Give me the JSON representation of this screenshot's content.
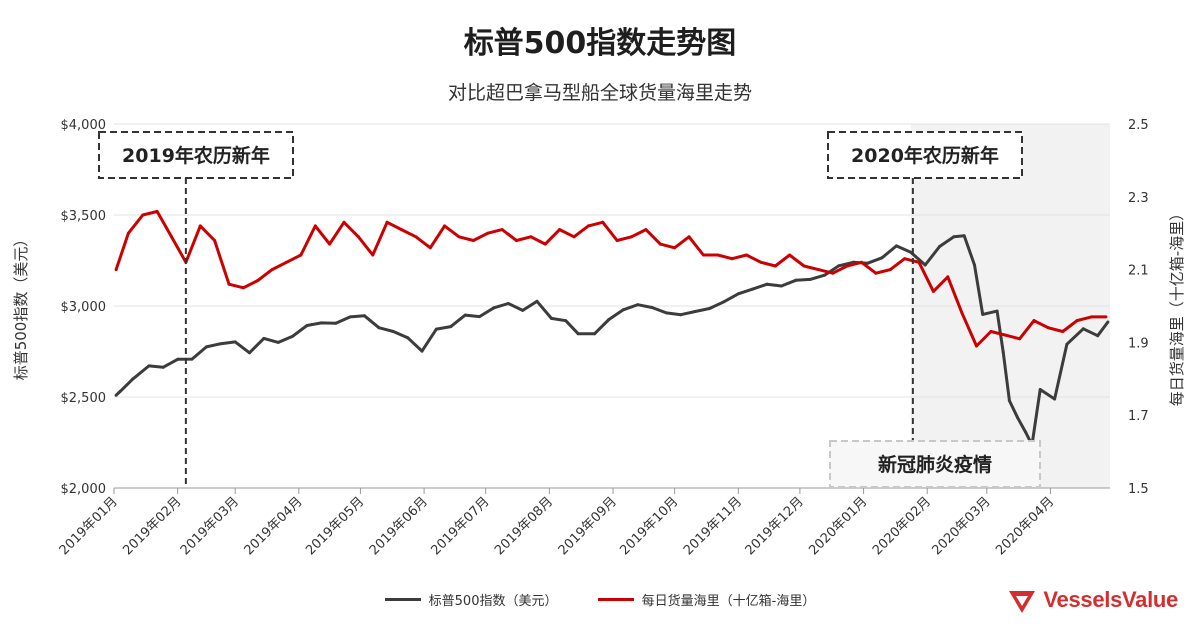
{
  "chart_data": {
    "type": "line",
    "title": "标普500指数走势图",
    "subtitle": "对比超巴拿马型船全球货量海里走势",
    "x_ticks": [
      "2019年01月",
      "2019年02月",
      "2019年03月",
      "2019年04月",
      "2019年05月",
      "2019年06月",
      "2019年07月",
      "2019年08月",
      "2019年09月",
      "2019年10月",
      "2019年11月",
      "2019年12月",
      "2020年01月",
      "2020年02月",
      "2020年03月",
      "2020年04月"
    ],
    "ylabel_left": "标普500指数（美元）",
    "ylabel_right": "每日货量海里（十亿箱-海里）",
    "ylim_left": [
      2000,
      4000
    ],
    "ylim_right": [
      1.5,
      2.5
    ],
    "yticks_left": [
      "$2,000",
      "$2,500",
      "$3,000",
      "$3,500",
      "$4,000"
    ],
    "yticks_right": [
      "1.5",
      "1.7",
      "1.9",
      "2.1",
      "2.3",
      "2.5"
    ],
    "grid": true,
    "legend_position": "bottom",
    "series": [
      {
        "name": "标普500指数（美元）",
        "axis": "left",
        "color": "#3c3c3c",
        "x": [
          "2019-01-02",
          "2019-01-04",
          "2019-01-10",
          "2019-01-18",
          "2019-01-25",
          "2019-02-01",
          "2019-02-08",
          "2019-02-15",
          "2019-02-22",
          "2019-03-01",
          "2019-03-08",
          "2019-03-15",
          "2019-03-22",
          "2019-03-29",
          "2019-04-05",
          "2019-04-12",
          "2019-04-19",
          "2019-04-26",
          "2019-05-03",
          "2019-05-10",
          "2019-05-17",
          "2019-05-24",
          "2019-05-31",
          "2019-06-07",
          "2019-06-14",
          "2019-06-21",
          "2019-06-28",
          "2019-07-05",
          "2019-07-12",
          "2019-07-19",
          "2019-07-26",
          "2019-08-02",
          "2019-08-09",
          "2019-08-15",
          "2019-08-23",
          "2019-08-30",
          "2019-09-06",
          "2019-09-13",
          "2019-09-20",
          "2019-09-27",
          "2019-10-04",
          "2019-10-11",
          "2019-10-18",
          "2019-10-25",
          "2019-11-01",
          "2019-11-08",
          "2019-11-15",
          "2019-11-22",
          "2019-11-29",
          "2019-12-06",
          "2019-12-13",
          "2019-12-20",
          "2019-12-27",
          "2020-01-03",
          "2020-01-10",
          "2020-01-17",
          "2020-01-24",
          "2020-01-31",
          "2020-02-07",
          "2020-02-14",
          "2020-02-19",
          "2020-02-24",
          "2020-02-28",
          "2020-03-06",
          "2020-03-09",
          "2020-03-12",
          "2020-03-16",
          "2020-03-20",
          "2020-03-23",
          "2020-03-27",
          "2020-04-03",
          "2020-04-09",
          "2020-04-17",
          "2020-04-24",
          "2020-04-29"
        ],
        "values": [
          2510,
          2531,
          2597,
          2671,
          2664,
          2707,
          2708,
          2775,
          2793,
          2803,
          2743,
          2822,
          2800,
          2834,
          2893,
          2907,
          2905,
          2940,
          2946,
          2881,
          2860,
          2826,
          2752,
          2873,
          2887,
          2950,
          2942,
          2990,
          3014,
          2976,
          3026,
          2932,
          2919,
          2848,
          2847,
          2926,
          2979,
          3007,
          2992,
          2962,
          2952,
          2970,
          2986,
          3023,
          3067,
          3093,
          3120,
          3110,
          3141,
          3146,
          3169,
          3221,
          3240,
          3235,
          3265,
          3330,
          3295,
          3225,
          3327,
          3380,
          3386,
          3225,
          2954,
          2972,
          2747,
          2480,
          2386,
          2305,
          2237,
          2541,
          2489,
          2790,
          2875,
          2837,
          2912
        ]
      },
      {
        "name": "每日货量海里（十亿箱-海里）",
        "axis": "right",
        "color": "#cc0000",
        "x": [
          "2019-01-02",
          "2019-01-08",
          "2019-01-15",
          "2019-01-22",
          "2019-01-29",
          "2019-02-05",
          "2019-02-12",
          "2019-02-19",
          "2019-02-26",
          "2019-03-05",
          "2019-03-12",
          "2019-03-19",
          "2019-03-26",
          "2019-04-02",
          "2019-04-09",
          "2019-04-16",
          "2019-04-23",
          "2019-04-30",
          "2019-05-07",
          "2019-05-14",
          "2019-05-21",
          "2019-05-28",
          "2019-06-04",
          "2019-06-11",
          "2019-06-18",
          "2019-06-25",
          "2019-07-02",
          "2019-07-09",
          "2019-07-16",
          "2019-07-23",
          "2019-07-30",
          "2019-08-06",
          "2019-08-13",
          "2019-08-20",
          "2019-08-27",
          "2019-09-03",
          "2019-09-10",
          "2019-09-17",
          "2019-09-24",
          "2019-10-01",
          "2019-10-08",
          "2019-10-15",
          "2019-10-22",
          "2019-10-29",
          "2019-11-05",
          "2019-11-12",
          "2019-11-19",
          "2019-11-26",
          "2019-12-03",
          "2019-12-10",
          "2019-12-17",
          "2019-12-24",
          "2019-12-31",
          "2020-01-07",
          "2020-01-14",
          "2020-01-21",
          "2020-01-28",
          "2020-02-04",
          "2020-02-11",
          "2020-02-18",
          "2020-02-25",
          "2020-03-03",
          "2020-03-10",
          "2020-03-17",
          "2020-03-24",
          "2020-03-31",
          "2020-04-07",
          "2020-04-14",
          "2020-04-21",
          "2020-04-28"
        ],
        "values": [
          2.1,
          2.2,
          2.25,
          2.26,
          2.19,
          2.12,
          2.22,
          2.18,
          2.06,
          2.05,
          2.07,
          2.1,
          2.12,
          2.14,
          2.22,
          2.17,
          2.23,
          2.19,
          2.14,
          2.23,
          2.21,
          2.19,
          2.16,
          2.22,
          2.19,
          2.18,
          2.2,
          2.21,
          2.18,
          2.19,
          2.17,
          2.21,
          2.19,
          2.22,
          2.23,
          2.18,
          2.19,
          2.21,
          2.17,
          2.16,
          2.19,
          2.14,
          2.14,
          2.13,
          2.14,
          2.12,
          2.11,
          2.14,
          2.11,
          2.1,
          2.09,
          2.11,
          2.12,
          2.09,
          2.1,
          2.13,
          2.12,
          2.04,
          2.08,
          1.98,
          1.89,
          1.93,
          1.92,
          1.91,
          1.96,
          1.94,
          1.93,
          1.96,
          1.97,
          1.97
        ]
      }
    ],
    "annotations": {
      "cny_2019": "2019年农历新年",
      "cny_2020": "2020年农历新年",
      "covid": "新冠肺炎疫情"
    }
  },
  "logo": {
    "text": "VesselsValue",
    "color": "#d32f2f"
  }
}
